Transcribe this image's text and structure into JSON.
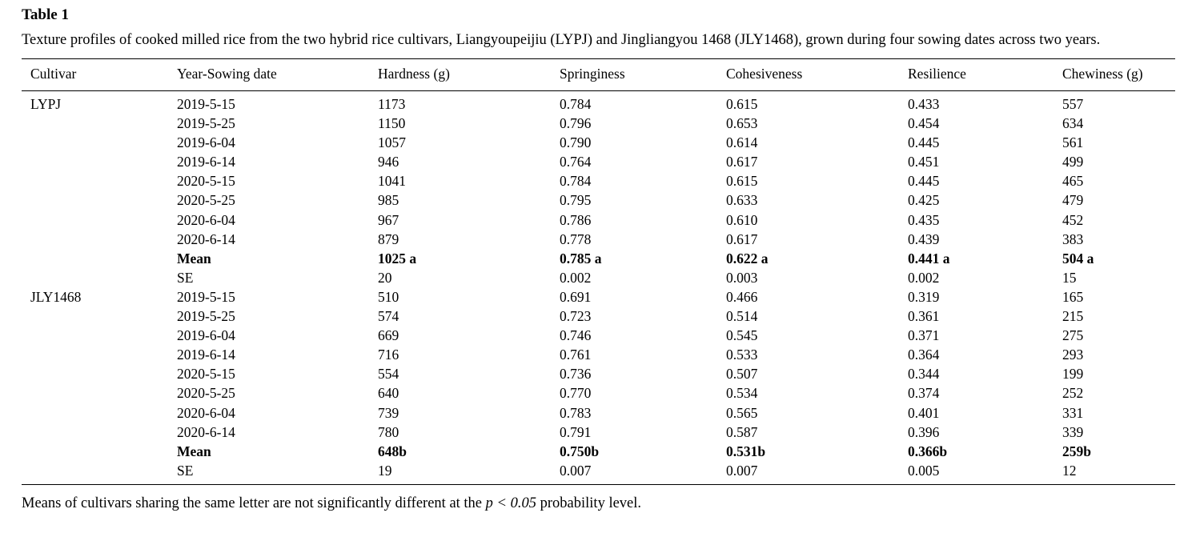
{
  "doc": {
    "title": "Table 1",
    "caption": "Texture profiles of cooked milled rice from the two hybrid rice cultivars, Liangyoupeijiu (LYPJ) and Jingliangyou 1468 (JLY1468), grown during four sowing dates across two years.",
    "footnote_prefix": "Means of cultivars sharing the same letter are not significantly different at the ",
    "footnote_italic": "p < 0.05",
    "footnote_suffix": " probability level."
  },
  "chart_data": {
    "type": "table",
    "columns": [
      "Cultivar",
      "Year-Sowing date",
      "Hardness (g)",
      "Springiness",
      "Cohesiveness",
      "Resilience",
      "Chewiness (g)"
    ],
    "rows": [
      {
        "cells": [
          "LYPJ",
          "2019-5-15",
          "1173",
          "0.784",
          "0.615",
          "0.433",
          "557"
        ],
        "bold": false
      },
      {
        "cells": [
          "",
          "2019-5-25",
          "1150",
          "0.796",
          "0.653",
          "0.454",
          "634"
        ],
        "bold": false
      },
      {
        "cells": [
          "",
          "2019-6-04",
          "1057",
          "0.790",
          "0.614",
          "0.445",
          "561"
        ],
        "bold": false
      },
      {
        "cells": [
          "",
          "2019-6-14",
          "946",
          "0.764",
          "0.617",
          "0.451",
          "499"
        ],
        "bold": false
      },
      {
        "cells": [
          "",
          "2020-5-15",
          "1041",
          "0.784",
          "0.615",
          "0.445",
          "465"
        ],
        "bold": false
      },
      {
        "cells": [
          "",
          "2020-5-25",
          "985",
          "0.795",
          "0.633",
          "0.425",
          "479"
        ],
        "bold": false
      },
      {
        "cells": [
          "",
          "2020-6-04",
          "967",
          "0.786",
          "0.610",
          "0.435",
          "452"
        ],
        "bold": false
      },
      {
        "cells": [
          "",
          "2020-6-14",
          "879",
          "0.778",
          "0.617",
          "0.439",
          "383"
        ],
        "bold": false
      },
      {
        "cells": [
          "",
          "Mean",
          "1025 a",
          "0.785 a",
          "0.622 a",
          "0.441 a",
          "504 a"
        ],
        "bold": true
      },
      {
        "cells": [
          "",
          "SE",
          "20",
          "0.002",
          "0.003",
          "0.002",
          "15"
        ],
        "bold": false
      },
      {
        "cells": [
          "JLY1468",
          "2019-5-15",
          "510",
          "0.691",
          "0.466",
          "0.319",
          "165"
        ],
        "bold": false
      },
      {
        "cells": [
          "",
          "2019-5-25",
          "574",
          "0.723",
          "0.514",
          "0.361",
          "215"
        ],
        "bold": false
      },
      {
        "cells": [
          "",
          "2019-6-04",
          "669",
          "0.746",
          "0.545",
          "0.371",
          "275"
        ],
        "bold": false
      },
      {
        "cells": [
          "",
          "2019-6-14",
          "716",
          "0.761",
          "0.533",
          "0.364",
          "293"
        ],
        "bold": false
      },
      {
        "cells": [
          "",
          "2020-5-15",
          "554",
          "0.736",
          "0.507",
          "0.344",
          "199"
        ],
        "bold": false
      },
      {
        "cells": [
          "",
          "2020-5-25",
          "640",
          "0.770",
          "0.534",
          "0.374",
          "252"
        ],
        "bold": false
      },
      {
        "cells": [
          "",
          "2020-6-04",
          "739",
          "0.783",
          "0.565",
          "0.401",
          "331"
        ],
        "bold": false
      },
      {
        "cells": [
          "",
          "2020-6-14",
          "780",
          "0.791",
          "0.587",
          "0.396",
          "339"
        ],
        "bold": false
      },
      {
        "cells": [
          "",
          "Mean",
          "648b",
          "0.750b",
          "0.531b",
          "0.366b",
          "259b"
        ],
        "bold": true
      },
      {
        "cells": [
          "",
          "SE",
          "19",
          "0.007",
          "0.007",
          "0.005",
          "12"
        ],
        "bold": false
      }
    ]
  }
}
